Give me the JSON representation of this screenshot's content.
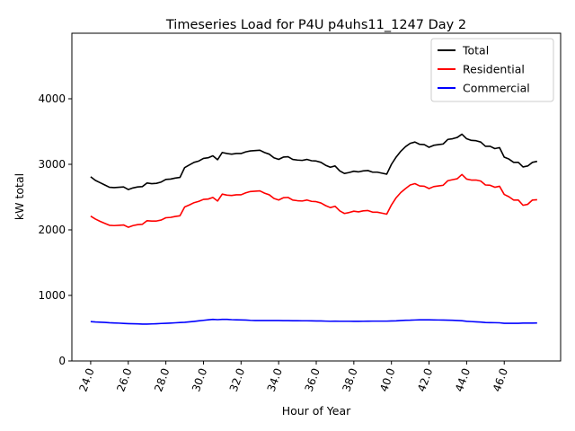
{
  "chart_data": {
    "type": "line",
    "title": "Timeseries Load for P4U p4uhs11_1247  Day 2",
    "xlabel": "Hour of Year",
    "ylabel": "kW total",
    "xlim": [
      23.0,
      49.0
    ],
    "ylim": [
      0,
      5000
    ],
    "xticks": [
      24,
      26,
      28,
      30,
      32,
      34,
      36,
      38,
      40,
      42,
      44,
      46
    ],
    "xtick_labels": [
      "24.0",
      "26.0",
      "28.0",
      "30.0",
      "32.0",
      "34.0",
      "36.0",
      "38.0",
      "40.0",
      "42.0",
      "44.0",
      "46.0"
    ],
    "yticks": [
      0,
      1000,
      2000,
      3000,
      4000
    ],
    "ytick_labels": [
      "0",
      "1000",
      "2000",
      "3000",
      "4000"
    ],
    "legend_position": "top-right",
    "x": [
      24.0,
      24.25,
      24.5,
      24.75,
      25.0,
      25.25,
      25.5,
      25.75,
      26.0,
      26.25,
      26.5,
      26.75,
      27.0,
      27.25,
      27.5,
      27.75,
      28.0,
      28.25,
      28.5,
      28.75,
      29.0,
      29.25,
      29.5,
      29.75,
      30.0,
      30.25,
      30.5,
      30.75,
      31.0,
      31.25,
      31.5,
      31.75,
      32.0,
      32.25,
      32.5,
      32.75,
      33.0,
      33.25,
      33.5,
      33.75,
      34.0,
      34.25,
      34.5,
      34.75,
      35.0,
      35.25,
      35.5,
      35.75,
      36.0,
      36.25,
      36.5,
      36.75,
      37.0,
      37.25,
      37.5,
      37.75,
      38.0,
      38.25,
      38.5,
      38.75,
      39.0,
      39.25,
      39.5,
      39.75,
      40.0,
      40.25,
      40.5,
      40.75,
      41.0,
      41.25,
      41.5,
      41.75,
      42.0,
      42.25,
      42.5,
      42.75,
      43.0,
      43.25,
      43.5,
      43.75,
      44.0,
      44.25,
      44.5,
      44.75,
      45.0,
      45.25,
      45.5,
      45.75,
      46.0,
      46.25,
      46.5,
      46.75,
      47.0,
      47.25,
      47.5,
      47.75
    ],
    "series": [
      {
        "name": "Total",
        "color": "#000000",
        "values": [
          2810,
          2755,
          2720,
          2685,
          2650,
          2645,
          2650,
          2655,
          2615,
          2640,
          2655,
          2660,
          2715,
          2705,
          2710,
          2730,
          2770,
          2775,
          2790,
          2800,
          2950,
          2990,
          3030,
          3050,
          3090,
          3100,
          3130,
          3070,
          3180,
          3165,
          3155,
          3165,
          3165,
          3190,
          3205,
          3210,
          3215,
          3180,
          3155,
          3100,
          3075,
          3110,
          3115,
          3075,
          3065,
          3060,
          3075,
          3055,
          3050,
          3030,
          2985,
          2955,
          2975,
          2900,
          2860,
          2875,
          2895,
          2885,
          2900,
          2905,
          2880,
          2880,
          2865,
          2850,
          3000,
          3110,
          3200,
          3270,
          3320,
          3340,
          3305,
          3300,
          3260,
          3290,
          3300,
          3310,
          3380,
          3390,
          3410,
          3460,
          3390,
          3365,
          3360,
          3340,
          3275,
          3275,
          3240,
          3255,
          3110,
          3080,
          3030,
          3030,
          2960,
          2975,
          3030,
          3045
        ]
      },
      {
        "name": "Residential",
        "color": "#ff0000",
        "values": [
          2210,
          2165,
          2130,
          2100,
          2070,
          2065,
          2070,
          2075,
          2040,
          2065,
          2080,
          2085,
          2140,
          2135,
          2135,
          2150,
          2185,
          2190,
          2205,
          2215,
          2350,
          2380,
          2415,
          2435,
          2465,
          2470,
          2495,
          2440,
          2545,
          2530,
          2525,
          2535,
          2535,
          2565,
          2585,
          2590,
          2595,
          2560,
          2535,
          2480,
          2455,
          2490,
          2495,
          2455,
          2445,
          2440,
          2455,
          2435,
          2430,
          2410,
          2370,
          2340,
          2360,
          2290,
          2250,
          2265,
          2285,
          2275,
          2290,
          2295,
          2270,
          2270,
          2255,
          2240,
          2380,
          2490,
          2570,
          2630,
          2685,
          2705,
          2670,
          2665,
          2630,
          2660,
          2670,
          2680,
          2750,
          2765,
          2780,
          2845,
          2775,
          2760,
          2760,
          2745,
          2685,
          2680,
          2650,
          2665,
          2540,
          2505,
          2455,
          2455,
          2375,
          2390,
          2455,
          2460
        ]
      },
      {
        "name": "Commercial",
        "color": "#0000ff",
        "values": [
          600,
          595,
          592,
          588,
          583,
          580,
          577,
          573,
          570,
          568,
          566,
          563,
          562,
          565,
          568,
          572,
          575,
          578,
          582,
          586,
          590,
          597,
          604,
          612,
          620,
          628,
          634,
          630,
          635,
          634,
          630,
          628,
          626,
          624,
          620,
          618,
          617,
          617,
          617,
          617,
          617,
          616,
          615,
          614,
          614,
          613,
          613,
          612,
          610,
          610,
          608,
          606,
          607,
          606,
          606,
          606,
          605,
          605,
          606,
          607,
          608,
          608,
          608,
          608,
          610,
          612,
          617,
          621,
          622,
          625,
          627,
          627,
          627,
          626,
          625,
          624,
          623,
          621,
          617,
          614,
          605,
          601,
          597,
          593,
          587,
          585,
          584,
          582,
          575,
          574,
          574,
          574,
          578,
          578,
          578,
          580
        ]
      }
    ]
  }
}
